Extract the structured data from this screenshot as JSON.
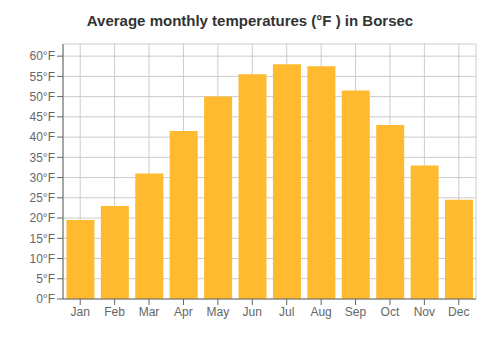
{
  "chart_data": {
    "type": "bar",
    "title": "Average monthly temperatures (°F ) in Borsec",
    "categories": [
      "Jan",
      "Feb",
      "Mar",
      "Apr",
      "May",
      "Jun",
      "Jul",
      "Aug",
      "Sep",
      "Oct",
      "Nov",
      "Dec"
    ],
    "values": [
      19.5,
      23.0,
      31.0,
      41.5,
      50.0,
      55.5,
      58.0,
      57.5,
      51.5,
      43.0,
      33.0,
      24.5
    ],
    "color": "#FFBA30",
    "ylim": [
      0,
      63
    ],
    "yticks": [
      {
        "value": 0,
        "label": "0°F"
      },
      {
        "value": 5,
        "label": "5°F"
      },
      {
        "value": 10,
        "label": "10°F"
      },
      {
        "value": 15,
        "label": "15°F"
      },
      {
        "value": 20,
        "label": "20°F"
      },
      {
        "value": 25,
        "label": "25°F"
      },
      {
        "value": 30,
        "label": "30°F"
      },
      {
        "value": 35,
        "label": "35°F"
      },
      {
        "value": 40,
        "label": "40°F"
      },
      {
        "value": 45,
        "label": "45°F"
      },
      {
        "value": 50,
        "label": "50°F"
      },
      {
        "value": 55,
        "label": "55°F"
      },
      {
        "value": 60,
        "label": "60°F"
      }
    ],
    "grid": true
  }
}
